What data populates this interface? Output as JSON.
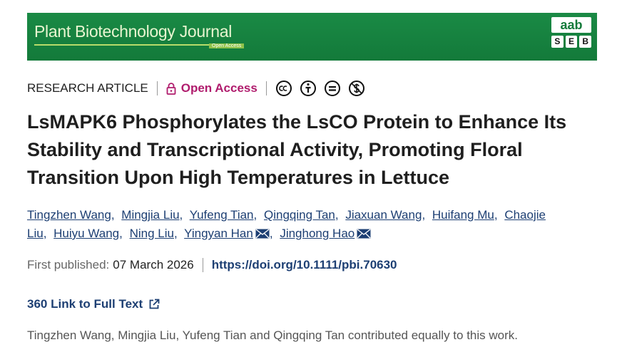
{
  "header": {
    "journal": "Plant Biotechnology Journal",
    "badge": "Open Access",
    "logo_top": "aab",
    "logo_letters": [
      "S",
      "E",
      "B"
    ]
  },
  "article": {
    "type": "RESEARCH ARTICLE",
    "access": "Open Access",
    "title": "LsMAPK6 Phosphorylates the LsCO Protein to Enhance Its Stability and Transcriptional Activity, Promoting Floral Transition Upon High Temperatures in Lettuce",
    "authors": [
      {
        "name": "Tingzhen Wang",
        "mail": false
      },
      {
        "name": "Mingjia Liu",
        "mail": false
      },
      {
        "name": "Yufeng Tian",
        "mail": false
      },
      {
        "name": "Qingqing Tan",
        "mail": false
      },
      {
        "name": "Jiaxuan Wang",
        "mail": false
      },
      {
        "name": "Huifang Mu",
        "mail": false
      },
      {
        "name": "Chaojie Liu",
        "mail": false
      },
      {
        "name": "Huiyu Wang",
        "mail": false
      },
      {
        "name": "Ning Liu",
        "mail": false
      },
      {
        "name": "Yingyan Han",
        "mail": true
      },
      {
        "name": "Jinghong Hao",
        "mail": true
      }
    ],
    "published_label": "First published:",
    "published_date": "07 March 2026",
    "doi": "https://doi.org/10.1111/pbi.70630",
    "full_text_link": "360 Link to Full Text",
    "note": "Tingzhen Wang, Mingjia Liu, Yufeng Tian and Qingqing Tan contributed equally to this work."
  }
}
